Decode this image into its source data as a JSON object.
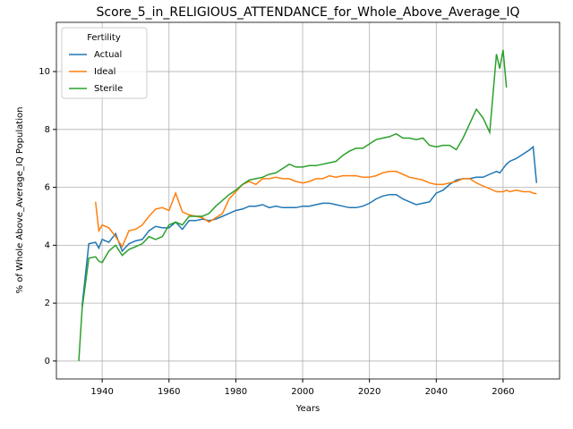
{
  "chart_data": {
    "type": "line",
    "title": "Score_5_in_RELIGIOUS_ATTENDANCE_for_Whole_Above_Average_IQ",
    "xlabel": "Years",
    "ylabel": "% of Whole Above_Average_IQ Population",
    "legend_title": "Fertility",
    "legend": "upper left",
    "grid": true,
    "xlim": [
      1926.3,
      2076.9
    ],
    "xticks": [
      1940,
      1960,
      1980,
      2000,
      2020,
      2040,
      2060
    ],
    "ylim": [
      -0.62,
      11.7
    ],
    "yticks": [
      0,
      2,
      4,
      6,
      8,
      10
    ],
    "x": [
      1933,
      1934,
      1936,
      1938,
      1939,
      1940,
      1942,
      1944,
      1946,
      1948,
      1950,
      1952,
      1954,
      1956,
      1958,
      1960,
      1962,
      1964,
      1966,
      1968,
      1970,
      1972,
      1974,
      1976,
      1978,
      1980,
      1982,
      1984,
      1986,
      1988,
      1990,
      1992,
      1994,
      1996,
      1998,
      2000,
      2002,
      2004,
      2006,
      2008,
      2010,
      2012,
      2014,
      2016,
      2018,
      2020,
      2022,
      2024,
      2026,
      2028,
      2030,
      2032,
      2034,
      2036,
      2038,
      2040,
      2042,
      2044,
      2046,
      2048,
      2050,
      2052,
      2054,
      2056,
      2058,
      2059,
      2060,
      2061,
      2062,
      2064,
      2066,
      2068,
      2069,
      2070
    ],
    "series": [
      {
        "name": "Actual",
        "color": "#1f77b4",
        "values": [
          null,
          1.9,
          4.05,
          4.1,
          3.9,
          4.2,
          4.1,
          4.4,
          3.8,
          4.05,
          4.15,
          4.2,
          4.5,
          4.65,
          4.6,
          4.6,
          4.8,
          4.55,
          4.85,
          4.85,
          4.9,
          4.85,
          4.9,
          5.0,
          5.1,
          5.2,
          5.25,
          5.35,
          5.35,
          5.4,
          5.3,
          5.35,
          5.3,
          5.3,
          5.3,
          5.35,
          5.35,
          5.4,
          5.45,
          5.45,
          5.4,
          5.35,
          5.3,
          5.3,
          5.35,
          5.45,
          5.6,
          5.7,
          5.75,
          5.75,
          5.6,
          5.5,
          5.4,
          5.45,
          5.5,
          5.8,
          5.9,
          6.1,
          6.25,
          6.3,
          6.3,
          6.35,
          6.35,
          6.45,
          6.55,
          6.5,
          6.65,
          6.8,
          6.9,
          7.0,
          7.15,
          7.3,
          7.4,
          6.15
        ]
      },
      {
        "name": "Ideal",
        "color": "#ff7f0e",
        "values": [
          null,
          null,
          null,
          5.5,
          4.5,
          4.7,
          4.6,
          4.3,
          3.95,
          4.5,
          4.55,
          4.7,
          5.0,
          5.25,
          5.3,
          5.2,
          5.8,
          5.15,
          5.05,
          5.0,
          4.95,
          4.8,
          4.95,
          5.1,
          5.6,
          5.85,
          6.1,
          6.2,
          6.1,
          6.3,
          6.3,
          6.35,
          6.3,
          6.3,
          6.2,
          6.15,
          6.2,
          6.3,
          6.3,
          6.4,
          6.35,
          6.4,
          6.4,
          6.4,
          6.35,
          6.35,
          6.4,
          6.5,
          6.55,
          6.55,
          6.45,
          6.35,
          6.3,
          6.25,
          6.15,
          6.1,
          6.1,
          6.15,
          6.2,
          6.3,
          6.3,
          6.15,
          6.05,
          5.95,
          5.85,
          5.85,
          5.85,
          5.9,
          5.85,
          5.9,
          5.85,
          5.85,
          5.8,
          5.78
        ]
      },
      {
        "name": "Sterile",
        "color": "#2ca02c",
        "values": [
          0.0,
          1.8,
          3.55,
          3.6,
          3.45,
          3.4,
          3.8,
          4.0,
          3.65,
          3.85,
          3.95,
          4.05,
          4.3,
          4.2,
          4.3,
          4.7,
          4.8,
          4.7,
          5.0,
          5.0,
          5.0,
          5.1,
          5.35,
          5.55,
          5.75,
          5.9,
          6.1,
          6.25,
          6.3,
          6.35,
          6.45,
          6.5,
          6.65,
          6.8,
          6.7,
          6.7,
          6.75,
          6.75,
          6.8,
          6.85,
          6.9,
          7.1,
          7.25,
          7.35,
          7.35,
          7.5,
          7.65,
          7.7,
          7.75,
          7.85,
          7.7,
          7.7,
          7.65,
          7.7,
          7.45,
          7.4,
          7.45,
          7.45,
          7.3,
          7.7,
          8.2,
          8.7,
          8.4,
          7.9,
          10.6,
          10.1,
          10.75,
          9.45,
          null,
          null,
          null,
          null,
          null,
          null
        ]
      }
    ]
  }
}
